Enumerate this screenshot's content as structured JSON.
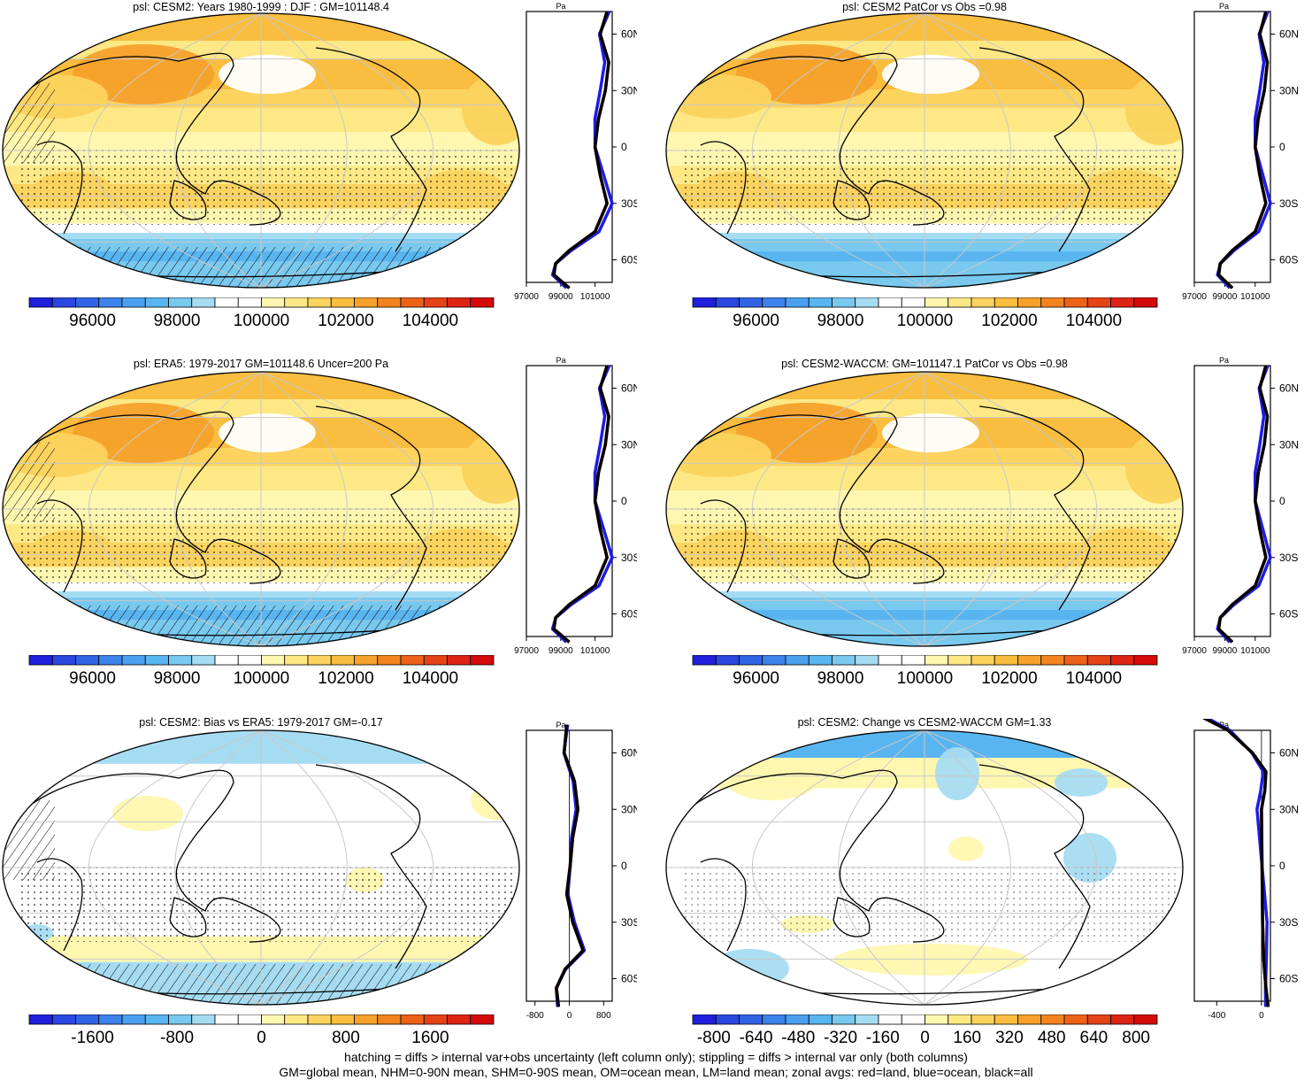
{
  "panels": [
    {
      "title": "psl: CESM2: Years 1980-1999 : DJF : GM=101148.4",
      "field": "psl",
      "kind": "climo",
      "hatch": true
    },
    {
      "title": "psl: CESM2 PatCor vs Obs =0.98",
      "field": "psl",
      "kind": "climo",
      "hatch": false
    },
    {
      "title": "psl: ERA5: 1979-2017 GM=101148.6 Uncer=200 Pa",
      "field": "psl",
      "kind": "climo",
      "hatch": true
    },
    {
      "title": "psl: CESM2-WACCM: GM=101147.1 PatCor vs Obs =0.98",
      "field": "psl",
      "kind": "climo",
      "hatch": false
    },
    {
      "title": "psl: CESM2: Bias vs ERA5: 1979-2017 GM=-0.17",
      "field": "psl",
      "kind": "bias",
      "hatch": true
    },
    {
      "title": "psl: CESM2: Change vs CESM2-WACCM GM=1.33",
      "field": "psl",
      "kind": "change",
      "hatch": false
    }
  ],
  "colorbars": {
    "climo": {
      "labels": [
        "96000",
        "98000",
        "100000",
        "102000",
        "104000"
      ],
      "label_values": [
        96000,
        98000,
        100000,
        102000,
        104000
      ],
      "min": 94500,
      "max": 105500
    },
    "bias": {
      "labels": [
        "-1600",
        "-800",
        "0",
        "800",
        "1600"
      ],
      "label_values": [
        -1600,
        -800,
        0,
        800,
        1600
      ],
      "min": -2200,
      "max": 2200
    },
    "change": {
      "labels": [
        "-800",
        "-640",
        "-480",
        "-320",
        "-160",
        "0",
        "160",
        "320",
        "480",
        "640",
        "800"
      ],
      "label_values": [
        -800,
        -640,
        -480,
        -320,
        -160,
        0,
        160,
        320,
        480,
        640,
        800
      ],
      "min": -880,
      "max": 880
    }
  },
  "palette": [
    "#1f1fdc",
    "#2a47e0",
    "#3164e4",
    "#3c82ea",
    "#4aa0ef",
    "#59b5f0",
    "#79c9ef",
    "#a6dcf2",
    "#ffffff",
    "#ffffff",
    "#fff7b0",
    "#fde885",
    "#fbd35e",
    "#f9bd3f",
    "#f6a12b",
    "#f2841f",
    "#ec6218",
    "#e44316",
    "#dd2414",
    "#d50a0a"
  ],
  "zonal": {
    "ylabel": "Pa",
    "lat_ticks": [
      "60N",
      "30N",
      "0",
      "30S",
      "60S"
    ],
    "lat_values": [
      60,
      30,
      0,
      -30,
      -60
    ],
    "climo_xlabels": [
      "97000",
      "99000",
      "101000"
    ],
    "climo_xvalues": [
      97000,
      99000,
      101000
    ],
    "bias_xlabels": [
      "-800",
      "0",
      "800"
    ],
    "bias_xvalues": [
      -800,
      0,
      800
    ],
    "change_xlabels": [
      "-400",
      "0"
    ],
    "change_xvalues": [
      -400,
      0
    ],
    "legend_colors": {
      "land": "#e8191a",
      "ocean": "#1c1ce6",
      "all": "#000000"
    }
  },
  "chart_data": [
    {
      "type": "heatmap",
      "title": "psl: CESM2: Years 1980-1999 : DJF : GM=101148.4",
      "colorbar_ticks": [
        96000,
        98000,
        100000,
        102000,
        104000
      ]
    },
    {
      "type": "heatmap",
      "title": "psl: CESM2 PatCor vs Obs =0.98",
      "colorbar_ticks": [
        96000,
        98000,
        100000,
        102000,
        104000
      ]
    },
    {
      "type": "heatmap",
      "title": "psl: ERA5: 1979-2017 GM=101148.6 Uncer=200 Pa",
      "colorbar_ticks": [
        96000,
        98000,
        100000,
        102000,
        104000
      ]
    },
    {
      "type": "heatmap",
      "title": "psl: CESM2-WACCM: GM=101147.1 PatCor vs Obs =0.98",
      "colorbar_ticks": [
        96000,
        98000,
        100000,
        102000,
        104000
      ]
    },
    {
      "type": "heatmap",
      "title": "psl: CESM2: Bias vs ERA5: 1979-2017 GM=-0.17",
      "colorbar_ticks": [
        -1600,
        -800,
        0,
        800,
        1600
      ]
    },
    {
      "type": "heatmap",
      "title": "psl: CESM2: Change vs CESM2-WACCM GM=1.33",
      "colorbar_ticks": [
        -800,
        -640,
        -480,
        -320,
        -160,
        0,
        160,
        320,
        480,
        640,
        800
      ]
    }
  ],
  "footer": {
    "line1": "hatching = diffs > internal var+obs uncertainty (left column only); stippling = diffs > internal var only (both columns)",
    "line2": "GM=global mean, NHM=0-90N mean, SHM=0-90S mean, OM=ocean mean, LM=land mean; zonal avgs: red=land, blue=ocean, black=all"
  }
}
